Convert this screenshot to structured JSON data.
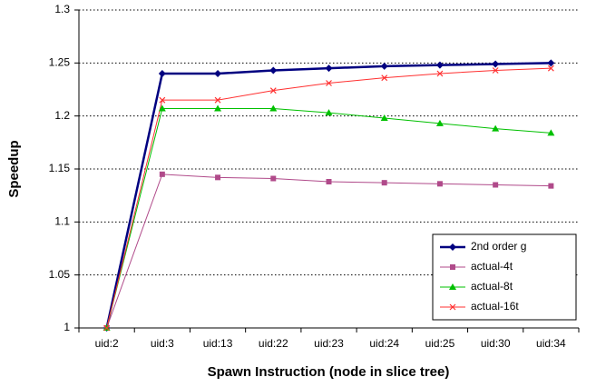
{
  "chart_data": {
    "type": "line",
    "xlabel": "Spawn Instruction (node in slice tree)",
    "ylabel": "Speedup",
    "categories": [
      "uid:2",
      "uid:3",
      "uid:13",
      "uid:22",
      "uid:23",
      "uid:24",
      "uid:25",
      "uid:30",
      "uid:34"
    ],
    "series": [
      {
        "name": "2nd order g",
        "color": "#000080",
        "marker": "diamond",
        "values": [
          1,
          1.24,
          1.24,
          1.243,
          1.245,
          1.247,
          1.248,
          1.249,
          1.25
        ]
      },
      {
        "name": "actual-4t",
        "color": "#b04a8a",
        "marker": "square",
        "values": [
          1,
          1.145,
          1.142,
          1.141,
          1.138,
          1.137,
          1.136,
          1.135,
          1.134
        ]
      },
      {
        "name": "actual-8t",
        "color": "#00c000",
        "marker": "triangle",
        "values": [
          1,
          1.207,
          1.207,
          1.207,
          1.203,
          1.198,
          1.193,
          1.188,
          1.184
        ]
      },
      {
        "name": "actual-16t",
        "color": "#ff3030",
        "marker": "x",
        "values": [
          1,
          1.215,
          1.215,
          1.224,
          1.231,
          1.236,
          1.24,
          1.243,
          1.245
        ]
      }
    ],
    "ylim": [
      1,
      1.3
    ],
    "yticks": [
      1,
      1.05,
      1.1,
      1.15,
      1.2,
      1.25,
      1.3
    ],
    "grid": true,
    "legend": "lower right"
  }
}
